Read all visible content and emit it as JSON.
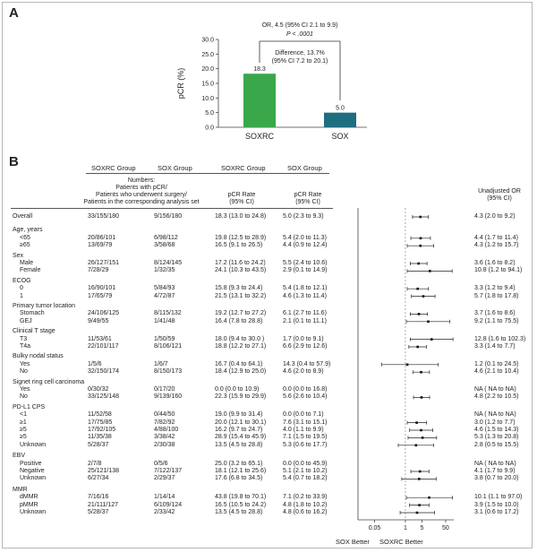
{
  "panel_a": {
    "label": "A",
    "annotation_or": "OR, 4.5 (95% CI 2.1 to 9.9)",
    "annotation_p": "P < .0001",
    "annotation_diff_1": "Difference, 13.7%",
    "annotation_diff_2": "(95% CI 7.2 to 20.1)",
    "colors": {
      "soxrc": "#3aa84a",
      "sox": "#1f6e80"
    }
  },
  "panel_b": {
    "label": "B",
    "headers": {
      "soxrc_group": "SOXRC Group",
      "sox_group": "SOX Group",
      "soxrc_group_2": "SOXRC Group",
      "sox_group_2": "SOX Group",
      "numbers_1": "Numbers:",
      "numbers_2": "Patients with pCR/",
      "numbers_3": "Patients who underwent surgery/",
      "numbers_4": "Patients in the corresponding analysis set",
      "pcr_rate_1": "pCR Rate",
      "pcr_rate_2": "(95% CI)",
      "pcr_rate_3": "pCR Rate",
      "pcr_rate_4": "(95% CI)",
      "or_1": "Unadjusted OR",
      "or_2": "(95% CI)"
    },
    "footer": {
      "sox_better": "SOX Better",
      "soxrc_better": "SOXRC Better"
    }
  },
  "chart_data": [
    {
      "type": "bar",
      "ylabel": "pCR (%)",
      "categories": [
        "SOXRC",
        "SOX"
      ],
      "values": [
        18.3,
        5.0
      ],
      "value_labels": [
        "18.3",
        "5.0"
      ],
      "ylim": [
        0,
        30
      ],
      "yticks": [
        "0.0",
        "5.0",
        "10.0",
        "15.0",
        "20.0",
        "25.0",
        "30.0"
      ]
    },
    {
      "type": "forest",
      "xscale": "log",
      "xticks": [
        "0.05",
        "1",
        "5",
        "50"
      ],
      "xtick_values": [
        0.05,
        1,
        5,
        50
      ],
      "xlim": [
        0.01,
        110
      ],
      "rows": [
        {
          "kind": "row",
          "label": "Overall",
          "a": "33/155/180",
          "b": "9/156/180",
          "ra": "18.3 (13.0 to 24.8)",
          "rb": "5.0 (2.3 to 9.3)",
          "or": "4.3 (2.0 to 9.2)",
          "est": 4.3,
          "lo": 2.0,
          "hi": 9.2
        },
        {
          "kind": "head",
          "label": "Age, years"
        },
        {
          "kind": "row",
          "label": "<65",
          "a": "20/86/101",
          "b": "6/98/112",
          "ra": "19.8 (12.5 to 28.9)",
          "rb": "5.4 (2.0 to 11.3)",
          "or": "4.4 (1.7 to 11.4)",
          "est": 4.4,
          "lo": 1.7,
          "hi": 11.4
        },
        {
          "kind": "row",
          "label": "≥65",
          "a": "13/69/79",
          "b": "3/58/68",
          "ra": "16.5 (9.1 to 26.5)",
          "rb": "4.4 (0.9 to 12.4)",
          "or": "4.3 (1.2 to 15.7)",
          "est": 4.3,
          "lo": 1.2,
          "hi": 15.7
        },
        {
          "kind": "head",
          "label": "Sex"
        },
        {
          "kind": "row",
          "label": "Male",
          "a": "26/127/151",
          "b": "8/124/145",
          "ra": "17.2 (11.6 to 24.2)",
          "rb": "5.5 (2.4 to 10.6)",
          "or": "3.6 (1.6 to 8.2)",
          "est": 3.6,
          "lo": 1.6,
          "hi": 8.2
        },
        {
          "kind": "row",
          "label": "Female",
          "a": "7/28/29",
          "b": "1/32/35",
          "ra": "24.1 (10.3 to 43.5)",
          "rb": "2.9 (0.1 to 14.9)",
          "or": "10.8 (1.2 to 94.1)",
          "est": 10.8,
          "lo": 1.2,
          "hi": 94.1
        },
        {
          "kind": "head",
          "label": "ECOG"
        },
        {
          "kind": "row",
          "label": "0",
          "a": "16/90/101",
          "b": "5/84/93",
          "ra": "15.8 (9.3 to 24.4)",
          "rb": "5.4 (1.8 to 12.1)",
          "or": "3.3 (1.2 to 9.4)",
          "est": 3.3,
          "lo": 1.2,
          "hi": 9.4
        },
        {
          "kind": "row",
          "label": "1",
          "a": "17/65/79",
          "b": "4/72/87",
          "ra": "21.5 (13.1 to 32.2)",
          "rb": "4.6 (1.3 to 11.4)",
          "or": "5.7 (1.8 to 17.8)",
          "est": 5.7,
          "lo": 1.8,
          "hi": 17.8
        },
        {
          "kind": "head",
          "label": "Primary tumor location"
        },
        {
          "kind": "row",
          "label": "Stomach",
          "a": "24/106/125",
          "b": "8/115/132",
          "ra": "19.2 (12.7 to 27.2)",
          "rb": "6.1 (2.7 to 11.6)",
          "or": "3.7 (1.6 to 8.6)",
          "est": 3.7,
          "lo": 1.6,
          "hi": 8.6
        },
        {
          "kind": "row",
          "label": "GEJ",
          "a": "9/49/55",
          "b": "1/41/48",
          "ra": "16.4 (7.8 to 28.8)",
          "rb": "2.1 (0.1 to 11.1)",
          "or": "9.2 (1.1 to 75.5)",
          "est": 9.2,
          "lo": 1.1,
          "hi": 75.5
        },
        {
          "kind": "head",
          "label": "Clinical T stage"
        },
        {
          "kind": "row",
          "label": "T3",
          "a": "11/53/61",
          "b": "1/50/59",
          "ra": "18.0 (9.4 to 30.0 )",
          "rb": "1.7 (0.0 to 9.1)",
          "or": "12.8 (1.6 to 102.3)",
          "est": 12.8,
          "lo": 1.6,
          "hi": 102.3
        },
        {
          "kind": "row",
          "label": "T4a",
          "a": "22/101/117",
          "b": "8/106/121",
          "ra": "18.8 (12.2 to 27.1)",
          "rb": "6.6 (2.9 to 12.6)",
          "or": "3.3 (1.4 to 7.7)",
          "est": 3.3,
          "lo": 1.4,
          "hi": 7.7
        },
        {
          "kind": "head",
          "label": "Bulky nodal status"
        },
        {
          "kind": "row",
          "label": "Yes",
          "a": "1/5/6",
          "b": "1/6/7",
          "ra": "16.7 (0.4 to 64.1)",
          "rb": "14.3 (0.4 to 57.9)",
          "or": "1.2 (0.1 to 24.5)",
          "est": 1.2,
          "lo": 0.1,
          "hi": 24.5
        },
        {
          "kind": "row",
          "label": "No",
          "a": "32/150/174",
          "b": "8/150/173",
          "ra": "18.4 (12.9 to 25.0)",
          "rb": "4.6 (2.0 to 8.9)",
          "or": "4.6 (2.1 to 10.4)",
          "est": 4.6,
          "lo": 2.1,
          "hi": 10.4
        },
        {
          "kind": "head",
          "label": "Signet ring cell carcinoma"
        },
        {
          "kind": "row",
          "label": "Yes",
          "a": "0/30/32",
          "b": "0/17/20",
          "ra": "0.0 (0.0 to 10.9)",
          "rb": "0.0 (0.0 to 16.8)",
          "or": "NA ( NA to NA)",
          "est": null,
          "lo": null,
          "hi": null
        },
        {
          "kind": "row",
          "label": "No",
          "a": "33/125/148",
          "b": "9/139/160",
          "ra": "22.3 (15.9 to 29.9)",
          "rb": "5.6 (2.6 to 10.4)",
          "or": "4.8 (2.2 to 10.5)",
          "est": 4.8,
          "lo": 2.2,
          "hi": 10.5
        },
        {
          "kind": "head",
          "label": "PD-L1 CPS"
        },
        {
          "kind": "row",
          "label": "<1",
          "a": "11/52/58",
          "b": "0/44/50",
          "ra": "19.0 (9.9 to 31.4)",
          "rb": "0.0 (0.0 to 7.1)",
          "or": "NA ( NA to NA)",
          "est": null,
          "lo": null,
          "hi": null
        },
        {
          "kind": "row",
          "label": "≥1",
          "a": "17/75/85",
          "b": "7/82/92",
          "ra": "20.0 (12.1 to 30.1)",
          "rb": "7.6 (3.1 to 15.1)",
          "or": "3.0 (1.2 to 7.7)",
          "est": 3.0,
          "lo": 1.2,
          "hi": 7.7
        },
        {
          "kind": "row",
          "label": "≥5",
          "a": "17/92/105",
          "b": "4/88/100",
          "ra": "16.2 (9.7 to 24.7)",
          "rb": "4.0 (1.1 to 9.9)",
          "or": "4.6 (1.5 to 14.3)",
          "est": 4.6,
          "lo": 1.5,
          "hi": 14.3
        },
        {
          "kind": "row",
          "label": "≥5",
          "a": "11/35/38",
          "b": "3/38/42",
          "ra": "28.9 (15.4 to 45.9)",
          "rb": "7.1 (1.5 to 19.5)",
          "or": "5.3 (1.3 to 20.8)",
          "est": 5.3,
          "lo": 1.3,
          "hi": 20.8
        },
        {
          "kind": "row",
          "label": "Unknown",
          "a": "5/28/37",
          "b": "2/30/38",
          "ra": "13.5 (4.5 to 28.8)",
          "rb": "5.3 (0.6 to 17.7)",
          "or": "2.8 (0.5 to 15.5)",
          "est": 2.8,
          "lo": 0.5,
          "hi": 15.5
        },
        {
          "kind": "gap"
        },
        {
          "kind": "head",
          "label": "EBV"
        },
        {
          "kind": "row",
          "label": "Positive",
          "a": "2/7/8",
          "b": "0/5/6",
          "ra": "25.0 (3.2 to 65.1)",
          "rb": "0.0 (0.0 to 45.9)",
          "or": "NA ( NA to NA)",
          "est": null,
          "lo": null,
          "hi": null
        },
        {
          "kind": "row",
          "label": "Negative",
          "a": "25/121/138",
          "b": "7/122/137",
          "ra": "18.1 (12.1 to 25.6)",
          "rb": "5.1 (2.1 to 10.2)",
          "or": "4.1 (1.7 to 9.9)",
          "est": 4.1,
          "lo": 1.7,
          "hi": 9.9
        },
        {
          "kind": "row",
          "label": "Unknown",
          "a": "6/27/34",
          "b": "2/29/37",
          "ra": "17.6 (6.8 to 34.5)",
          "rb": "5.4 (0.7 to 18.2)",
          "or": "3.8 (0.7 to 20.0)",
          "est": 3.8,
          "lo": 0.7,
          "hi": 20.0
        },
        {
          "kind": "gap"
        },
        {
          "kind": "head",
          "label": "MMR"
        },
        {
          "kind": "row",
          "label": "dMMR",
          "a": "7/16/16",
          "b": "1/14/14",
          "ra": "43.8 (19.8 to 70.1)",
          "rb": "7.1 (0.2 to 33.9)",
          "or": "10.1 (1.1 to 97.0)",
          "est": 10.1,
          "lo": 1.1,
          "hi": 97.0
        },
        {
          "kind": "row",
          "label": "pMMR",
          "a": "21/111/127",
          "b": "6/109/124",
          "ra": "16.5 (10.5 to 24.2)",
          "rb": "4.8 (1.8 to 10.2)",
          "or": "3.9 (1.5 to 10.0)",
          "est": 3.9,
          "lo": 1.5,
          "hi": 10.0
        },
        {
          "kind": "row",
          "label": "Unknown",
          "a": "5/28/37",
          "b": "2/33/42",
          "ra": "13.5 (4.5 to 28.8)",
          "rb": "4.8 (0.6 to 16.2)",
          "or": "3.1 (0.6 to 17.2)",
          "est": 3.1,
          "lo": 0.6,
          "hi": 17.2
        }
      ]
    }
  ]
}
